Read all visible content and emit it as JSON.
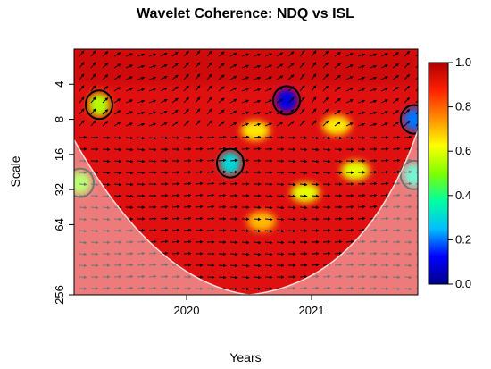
{
  "chart_data": {
    "type": "heatmap",
    "title": "Wavelet Coherence: NDQ vs ISL",
    "xlabel": "Years",
    "ylabel": "Scale",
    "x_ticks": [
      {
        "label": "2020",
        "value": 2020.0
      },
      {
        "label": "2021",
        "value": 2021.0
      }
    ],
    "x_range": [
      2019.1,
      2021.85
    ],
    "y_ticks": [
      {
        "label": "4",
        "value": 4
      },
      {
        "label": "8",
        "value": 8
      },
      {
        "label": "16",
        "value": 16
      },
      {
        "label": "32",
        "value": 32
      },
      {
        "label": "64",
        "value": 64
      },
      {
        "label": "256",
        "value": 256
      }
    ],
    "y_scale": "log2",
    "y_reversed": true,
    "y_range": [
      2,
      256
    ],
    "colorbar": {
      "ticks": [
        "0.0",
        "0.2",
        "0.4",
        "0.6",
        "0.8",
        "1.0"
      ],
      "range": [
        0,
        1
      ],
      "colors": [
        "#00008b",
        "#0000ff",
        "#00bfff",
        "#00ffa0",
        "#80ff00",
        "#ffff00",
        "#ff8c00",
        "#ff2000",
        "#b00000"
      ]
    },
    "dominant_coherence": 0.85,
    "cone_of_influence": true,
    "phase_arrows": true,
    "low_coherence_regions": [
      {
        "x": 2020.8,
        "scale": 5.5,
        "coherence": 0.1
      },
      {
        "x": 2020.35,
        "scale": 19,
        "coherence": 0.3
      },
      {
        "x": 2019.3,
        "scale": 6,
        "coherence": 0.55
      },
      {
        "x": 2019.15,
        "scale": 28,
        "coherence": 0.5
      },
      {
        "x": 2021.82,
        "scale": 8,
        "coherence": 0.2
      },
      {
        "x": 2021.82,
        "scale": 24,
        "coherence": 0.35
      }
    ],
    "moderate_regions": [
      {
        "x": 2020.95,
        "scale": 34,
        "coherence": 0.6
      },
      {
        "x": 2020.55,
        "scale": 10,
        "coherence": 0.65
      },
      {
        "x": 2021.35,
        "scale": 22,
        "coherence": 0.6
      },
      {
        "x": 2020.6,
        "scale": 60,
        "coherence": 0.7
      },
      {
        "x": 2021.2,
        "scale": 9,
        "coherence": 0.65
      }
    ]
  }
}
